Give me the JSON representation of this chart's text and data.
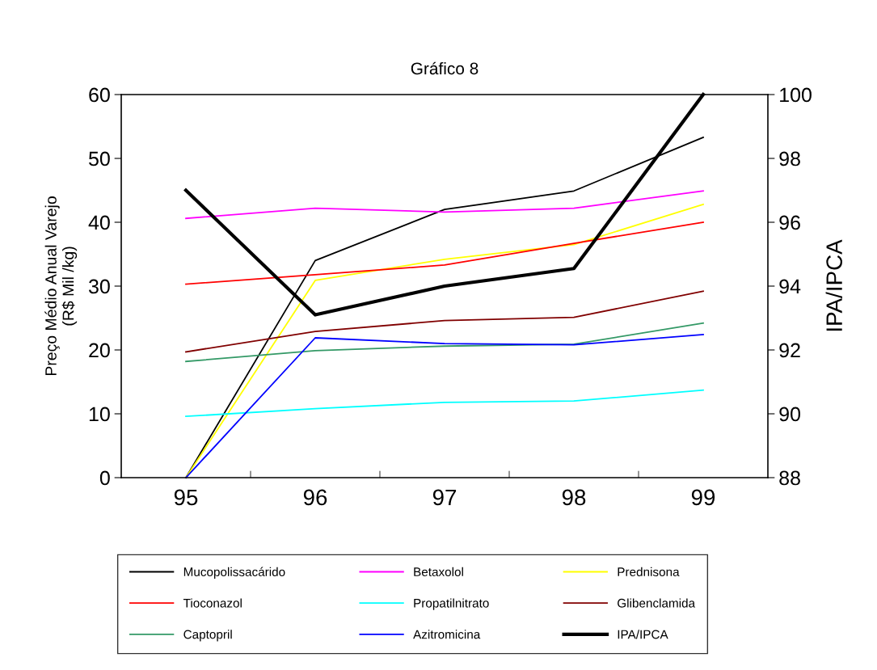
{
  "chart_data": {
    "type": "line",
    "title": "Gráfico 8",
    "ylabel": "Preço Médio Anual Varejo\n(R$ Mil /kg)",
    "y2label": "IPA/IPCA",
    "categories": [
      "95",
      "96",
      "97",
      "98",
      "99"
    ],
    "series": [
      {
        "name": "Mucopolissacárido",
        "color": "#000000",
        "values": [
          0,
          34.0,
          42.0,
          44.9,
          53.3
        ]
      },
      {
        "name": "Betaxolol",
        "color": "#ff00ff",
        "values": [
          40.6,
          42.2,
          41.6,
          42.2,
          44.9
        ]
      },
      {
        "name": "Prednisona",
        "color": "#ffff00",
        "values": [
          0,
          30.9,
          34.2,
          36.5,
          42.8
        ]
      },
      {
        "name": "Tioconazol",
        "color": "#ff0000",
        "values": [
          30.3,
          31.8,
          33.3,
          36.7,
          40.0
        ]
      },
      {
        "name": "Propatilnitrato",
        "color": "#00ffff",
        "values": [
          9.6,
          10.8,
          11.8,
          12.0,
          13.7
        ]
      },
      {
        "name": "Glibenclamida",
        "color": "#800000",
        "values": [
          19.7,
          22.9,
          24.6,
          25.1,
          29.2
        ]
      },
      {
        "name": "Captopril",
        "color": "#339966",
        "values": [
          18.2,
          19.9,
          20.6,
          20.9,
          24.2
        ]
      },
      {
        "name": "Azitromicina",
        "color": "#0000ff",
        "values": [
          0,
          21.9,
          21.0,
          20.8,
          22.4
        ]
      },
      {
        "name": "IPA/IPCA",
        "color": "#000000",
        "axis": "y2",
        "values": [
          97.0,
          93.1,
          94.0,
          94.55,
          100.0
        ]
      }
    ],
    "ylim": [
      0,
      60
    ],
    "yticks": [
      0,
      10,
      20,
      30,
      40,
      50,
      60
    ],
    "y2lim": [
      88,
      100
    ],
    "y2ticks": [
      88,
      90,
      92,
      94,
      96,
      98,
      100
    ],
    "grid": false,
    "legend": "bottom",
    "marker": "none",
    "line_style": "solid"
  }
}
